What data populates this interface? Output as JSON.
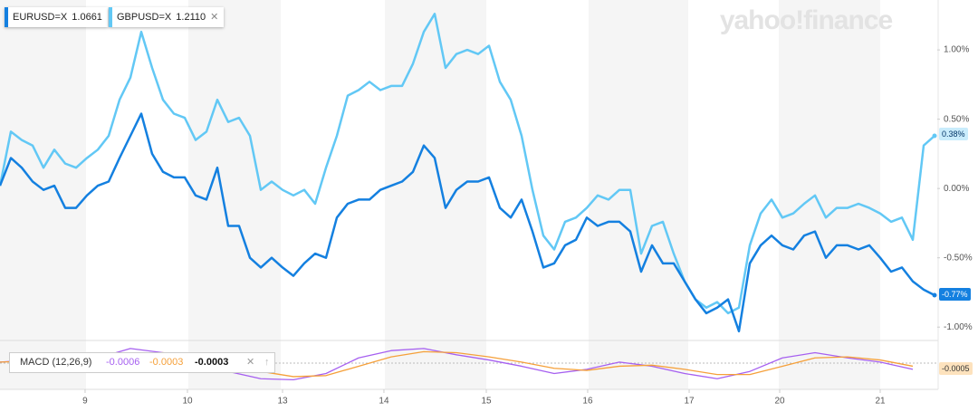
{
  "chart_data": {
    "type": "line",
    "watermark": "yahoo!finance",
    "x": [
      0,
      1,
      2,
      3,
      4,
      5,
      6,
      7,
      8,
      9,
      10,
      11,
      12,
      13,
      14,
      15,
      16,
      17,
      18,
      19,
      20,
      21,
      22,
      23,
      24,
      25,
      26,
      27,
      28,
      29,
      30,
      31,
      32,
      33,
      34,
      35,
      36,
      37,
      38,
      39,
      40,
      41,
      42,
      43,
      44,
      45,
      46,
      47,
      48,
      49,
      50,
      51,
      52,
      53,
      54,
      55,
      56,
      57,
      58,
      59,
      60,
      61,
      62,
      63,
      64,
      65,
      66,
      67,
      68,
      69,
      70,
      71,
      72,
      73,
      74,
      75,
      76,
      77,
      78,
      79,
      80,
      81,
      82,
      83,
      84,
      85,
      86
    ],
    "xlim": [
      0,
      86.25
    ],
    "xticks": [
      {
        "value": 7.83,
        "label": "9"
      },
      {
        "value": 17.25,
        "label": "10"
      },
      {
        "value": 26,
        "label": "13"
      },
      {
        "value": 35.33,
        "label": "14"
      },
      {
        "value": 44.75,
        "label": "15"
      },
      {
        "value": 54.08,
        "label": "16"
      },
      {
        "value": 63.42,
        "label": "17"
      },
      {
        "value": 71.75,
        "label": "20"
      },
      {
        "value": 81,
        "label": "21"
      }
    ],
    "ylim": [
      -1.09,
      1.36
    ],
    "yticks": [
      {
        "value": 1,
        "label": "1.00%"
      },
      {
        "value": 0.5,
        "label": "0.50%"
      },
      {
        "value": 0,
        "label": "0.00%"
      },
      {
        "value": -0.5,
        "label": "-0.50%"
      },
      {
        "value": -1,
        "label": "-1.00%"
      }
    ],
    "grid": false,
    "series": [
      {
        "name": "EURUSD=X",
        "price": "1.0661",
        "color": "#1480e0",
        "last_label": "-0.77%",
        "values": [
          0.02,
          0.22,
          0.15,
          0.05,
          -0.01,
          0.02,
          -0.14,
          -0.14,
          -0.05,
          0.02,
          0.05,
          0.22,
          0.38,
          0.54,
          0.25,
          0.12,
          0.08,
          0.08,
          -0.05,
          -0.08,
          0.15,
          -0.27,
          -0.27,
          -0.5,
          -0.57,
          -0.5,
          -0.57,
          -0.63,
          -0.54,
          -0.47,
          -0.5,
          -0.21,
          -0.11,
          -0.08,
          -0.08,
          -0.01,
          0.02,
          0.05,
          0.12,
          0.31,
          0.22,
          -0.14,
          -0.01,
          0.05,
          0.05,
          0.08,
          -0.14,
          -0.21,
          -0.08,
          -0.31,
          -0.57,
          -0.54,
          -0.41,
          -0.37,
          -0.21,
          -0.27,
          -0.24,
          -0.24,
          -0.31,
          -0.6,
          -0.41,
          -0.54,
          -0.54,
          -0.67,
          -0.8,
          -0.9,
          -0.86,
          -0.8,
          -1.03,
          -0.54,
          -0.41,
          -0.34,
          -0.41,
          -0.44,
          -0.34,
          -0.31,
          -0.5,
          -0.41,
          -0.41,
          -0.44,
          -0.41,
          -0.5,
          -0.6,
          -0.57,
          -0.67,
          -0.73,
          -0.77
        ]
      },
      {
        "name": "GBPUSD=X",
        "price": "1.2110",
        "color": "#62c8f5",
        "last_label": "0.38%",
        "values": [
          0.02,
          0.41,
          0.35,
          0.31,
          0.15,
          0.28,
          0.18,
          0.15,
          0.22,
          0.28,
          0.38,
          0.64,
          0.8,
          1.13,
          0.87,
          0.64,
          0.54,
          0.51,
          0.35,
          0.41,
          0.64,
          0.48,
          0.51,
          0.38,
          -0.01,
          0.05,
          -0.01,
          -0.05,
          -0.01,
          -0.11,
          0.15,
          0.38,
          0.67,
          0.71,
          0.77,
          0.71,
          0.74,
          0.74,
          0.9,
          1.13,
          1.26,
          0.87,
          0.97,
          1.0,
          0.97,
          1.03,
          0.77,
          0.64,
          0.38,
          -0.01,
          -0.34,
          -0.44,
          -0.24,
          -0.21,
          -0.14,
          -0.05,
          -0.08,
          -0.01,
          -0.01,
          -0.47,
          -0.27,
          -0.24,
          -0.47,
          -0.67,
          -0.8,
          -0.86,
          -0.82,
          -0.9,
          -0.86,
          -0.41,
          -0.18,
          -0.08,
          -0.21,
          -0.18,
          -0.11,
          -0.05,
          -0.21,
          -0.14,
          -0.14,
          -0.11,
          -0.14,
          -0.18,
          -0.24,
          -0.21,
          -0.37,
          0.31,
          0.38
        ]
      }
    ],
    "macd": {
      "label": "MACD (12,26,9)",
      "x": [
        0,
        3,
        6,
        9,
        12,
        15,
        18,
        21,
        24,
        27,
        30,
        33,
        36,
        39,
        42,
        45,
        48,
        51,
        54,
        57,
        60,
        63,
        66,
        69,
        72,
        75,
        78,
        81,
        84
      ],
      "ylim": [
        -0.002,
        0.002
      ],
      "series": [
        {
          "readout": "-0.0006",
          "color": "#a660f0",
          "values": [
            0.0001,
            0.0003,
            0.0001,
            0.0005,
            0.0014,
            0.001,
            0.0001,
            -0.0008,
            -0.0015,
            -0.0016,
            -0.001,
            0.0005,
            0.0012,
            0.0014,
            0.0008,
            0.0003,
            -0.0003,
            -0.001,
            -0.0006,
            0.0001,
            -0.0003,
            -0.001,
            -0.0015,
            -0.0008,
            0.0005,
            0.001,
            0.0005,
            0.0001,
            -0.0006
          ]
        },
        {
          "readout": "-0.0003",
          "color": "#f5a03a",
          "values": [
            0.0001,
            0.0002,
            0.0002,
            0.0003,
            0.0008,
            0.001,
            0.0006,
            0,
            -0.0008,
            -0.0013,
            -0.0012,
            -0.0003,
            0.0006,
            0.0011,
            0.001,
            0.0006,
            0.0001,
            -0.0005,
            -0.0007,
            -0.0003,
            -0.0002,
            -0.0006,
            -0.0011,
            -0.0011,
            -0.0003,
            0.0005,
            0.0006,
            0.0003,
            -0.0003
          ]
        }
      ],
      "histogram_readout": "-0.0003",
      "current_label": "-0.0005"
    }
  }
}
